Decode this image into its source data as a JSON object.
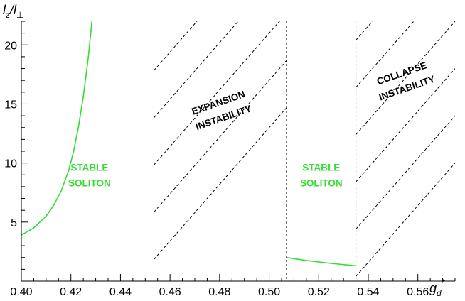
{
  "chart_data": {
    "type": "line",
    "xlabel": {
      "main": "g",
      "sub": "d",
      "sup": "*"
    },
    "ylabel": {
      "num": "l",
      "num_sub": "z",
      "den": "l",
      "den_sub": "⊥"
    },
    "xlim": [
      0.4,
      0.575
    ],
    "ylim": [
      0,
      22
    ],
    "x_ticks": [
      0.4,
      0.42,
      0.44,
      0.46,
      0.48,
      0.5,
      0.52,
      0.54,
      0.56
    ],
    "x_tick_labels": [
      "0.40",
      "0.42",
      "0.44",
      "0.46",
      "0.48",
      "0.50",
      "0.52",
      "0.54",
      "0.56"
    ],
    "y_ticks": [
      5,
      10,
      15,
      20
    ],
    "y_tick_labels": [
      "5",
      "10",
      "15",
      "20"
    ],
    "grid": false,
    "series": [
      {
        "color": "#33dd33",
        "x": [
          0.4,
          0.405,
          0.41,
          0.413,
          0.416,
          0.419,
          0.421,
          0.423,
          0.425,
          0.427,
          0.4285
        ],
        "y": [
          3.9,
          4.5,
          5.5,
          6.4,
          7.6,
          9.3,
          10.9,
          13.0,
          15.6,
          18.9,
          22.0
        ]
      },
      {
        "color": "#33dd33",
        "x": [
          0.507,
          0.515,
          0.525,
          0.535
        ],
        "y": [
          2.0,
          1.75,
          1.5,
          1.3
        ]
      }
    ],
    "boundaries": [
      0.4535,
      0.507,
      0.535
    ],
    "regions": [
      {
        "lines": [
          "STABLE",
          "SOLITON"
        ],
        "color": "#33dd33",
        "x": 0.4275,
        "y": 9.0,
        "rotate": 0
      },
      {
        "lines": [
          "EXPANSION",
          "INSTABILITY"
        ],
        "color": "#000000",
        "x": 0.4805,
        "y": 14.5,
        "rotate": -19
      },
      {
        "lines": [
          "STABLE",
          "SOLITON"
        ],
        "color": "#33dd33",
        "x": 0.521,
        "y": 9.0,
        "rotate": 0
      },
      {
        "lines": [
          "COLLAPSE",
          "INSTABILITY"
        ],
        "color": "#000000",
        "x": 0.5545,
        "y": 17.0,
        "rotate": -19
      }
    ],
    "hatch": {
      "slope": 240,
      "zones": [
        {
          "x0": 0.4535,
          "x1": 0.507,
          "offsets": [
            -107,
            -103,
            -99,
            -95,
            -91
          ]
        },
        {
          "x0": 0.535,
          "x1": 0.575,
          "offsets": [
            -128,
            -124,
            -120,
            -116,
            -112,
            -108
          ]
        }
      ]
    }
  }
}
